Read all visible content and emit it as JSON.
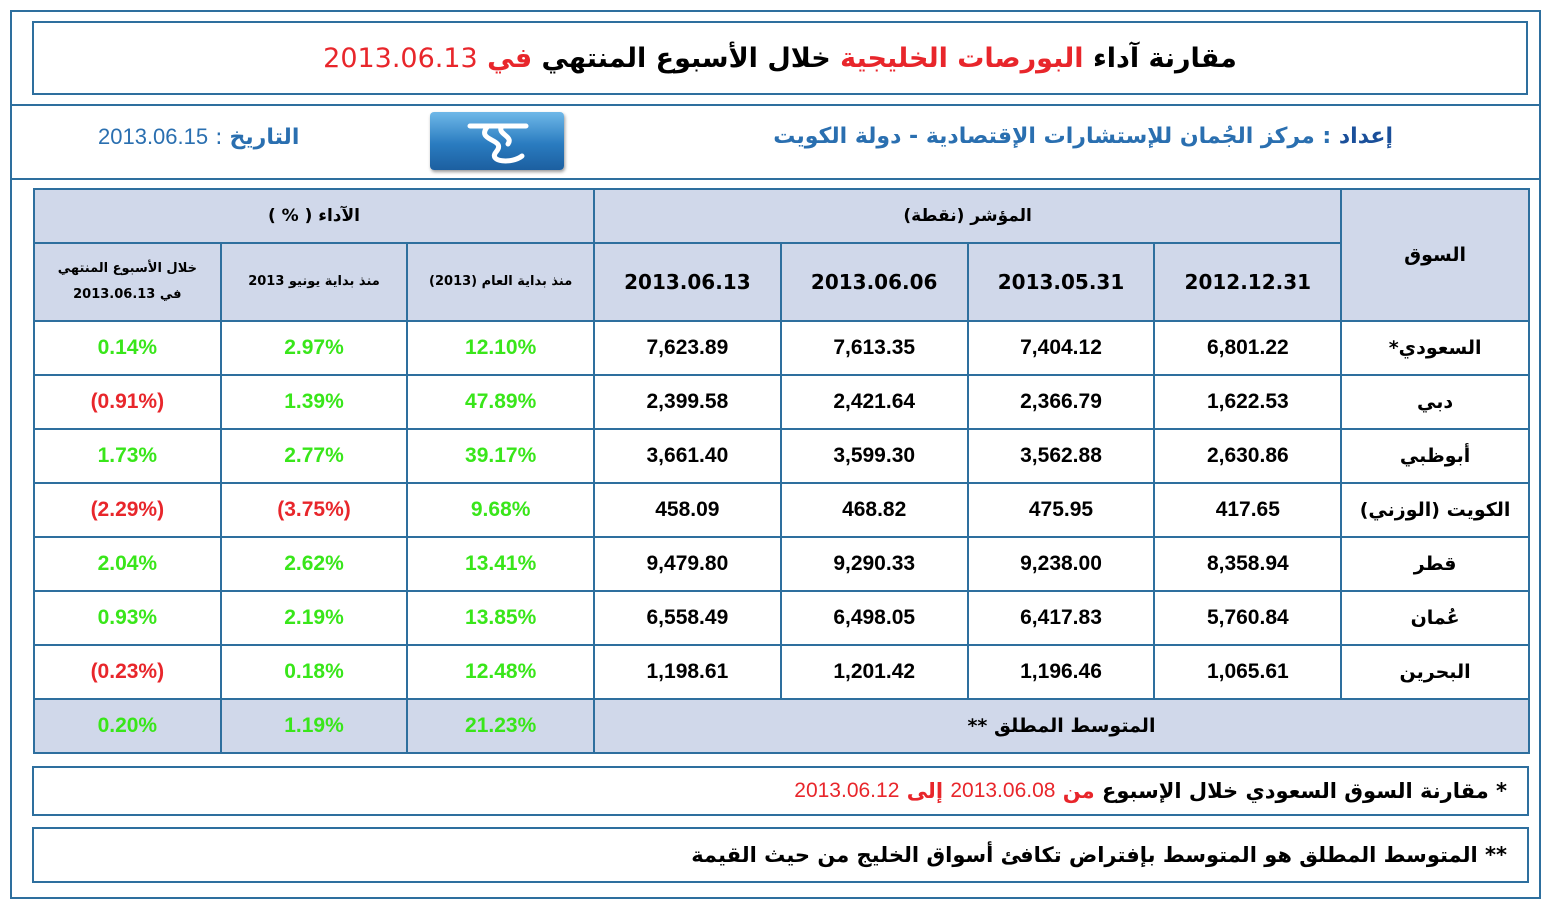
{
  "title": {
    "part1": "مقارنة آداء",
    "part2": "البورصات الخليجية",
    "part3": "خلال الأسبوع المنتهي",
    "part4": "في",
    "date": "2013.06.13"
  },
  "info": {
    "prep_label": "إعداد",
    "prep_sep": ":",
    "prep_value": "مركز الجُمان للإستشارات الإقتصادية - دولة الكويت",
    "date_label": "التاريخ",
    "date_sep": ":",
    "date_value": "2013.06.15",
    "logo_icon": "aljuman-logo"
  },
  "table": {
    "market_header": "السوق",
    "index_header": "المؤشر (نقطة)",
    "perf_header": "الآداء ( % )",
    "date_headers": [
      "2012.12.31",
      "2013.05.31",
      "2013.06.06",
      "2013.06.13"
    ],
    "perf_ytd": "منذ بداية العام (2013)",
    "perf_june": "منذ بداية يونيو 2013",
    "perf_week_line1": "خلال الأسبوع المنتهي",
    "perf_week_line2": "في 2013.06.13",
    "rows": [
      {
        "market": "السعودي*",
        "v1": "6,801.22",
        "v2": "7,404.12",
        "v3": "7,613.35",
        "v4": "7,623.89",
        "ytd": "12.10%",
        "june": "2.97%",
        "week": "0.14%"
      },
      {
        "market": "دبي",
        "v1": "1,622.53",
        "v2": "2,366.79",
        "v3": "2,421.64",
        "v4": "2,399.58",
        "ytd": "47.89%",
        "june": "1.39%",
        "week": "(0.91%)"
      },
      {
        "market": "أبوظبي",
        "v1": "2,630.86",
        "v2": "3,562.88",
        "v3": "3,599.30",
        "v4": "3,661.40",
        "ytd": "39.17%",
        "june": "2.77%",
        "week": "1.73%"
      },
      {
        "market": "الكويت (الوزني)",
        "v1": "417.65",
        "v2": "475.95",
        "v3": "468.82",
        "v4": "458.09",
        "ytd": "9.68%",
        "june": "(3.75%)",
        "week": "(2.29%)"
      },
      {
        "market": "قطر",
        "v1": "8,358.94",
        "v2": "9,238.00",
        "v3": "9,290.33",
        "v4": "9,479.80",
        "ytd": "13.41%",
        "june": "2.62%",
        "week": "2.04%"
      },
      {
        "market": "عُمان",
        "v1": "5,760.84",
        "v2": "6,417.83",
        "v3": "6,498.05",
        "v4": "6,558.49",
        "ytd": "13.85%",
        "june": "2.19%",
        "week": "0.93%"
      },
      {
        "market": "البحرين",
        "v1": "1,065.61",
        "v2": "1,196.46",
        "v3": "1,201.42",
        "v4": "1,198.61",
        "ytd": "12.48%",
        "june": "0.18%",
        "week": "(0.23%)"
      }
    ],
    "avg_label": "المتوسط المطلق **",
    "avg_ytd": "21.23%",
    "avg_june": "1.19%",
    "avg_week": "0.20%"
  },
  "notes": {
    "note1_a": "* مقارنة السوق السعودي خلال الإسبوع",
    "note1_from": "من",
    "note1_date1": "2013.06.08",
    "note1_to": "إلى",
    "note1_date2": "2013.06.12",
    "note2": "** المتوسط المطلق هو المتوسط بإفتراض تكافئ أسواق الخليج من حيث القيمة"
  },
  "colors": {
    "border": "#2e6f9e",
    "header_bg": "#d0d8ea",
    "positive": "#39e61a",
    "negative": "#e8262b",
    "accent_blue": "#2a6fb0"
  }
}
